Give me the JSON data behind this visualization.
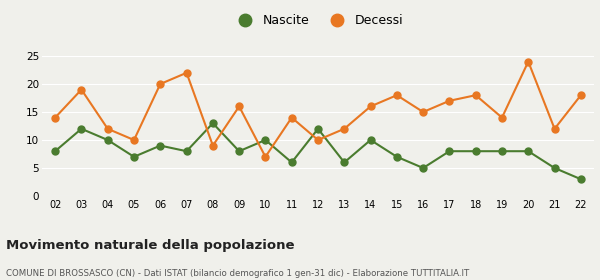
{
  "years": [
    "02",
    "03",
    "04",
    "05",
    "06",
    "07",
    "08",
    "09",
    "10",
    "11",
    "12",
    "13",
    "14",
    "15",
    "16",
    "17",
    "18",
    "19",
    "20",
    "21",
    "22"
  ],
  "nascite": [
    8,
    12,
    10,
    7,
    9,
    8,
    13,
    8,
    10,
    6,
    12,
    6,
    10,
    7,
    5,
    8,
    8,
    8,
    8,
    5,
    3
  ],
  "decessi": [
    14,
    19,
    12,
    10,
    20,
    22,
    9,
    16,
    7,
    14,
    10,
    12,
    16,
    18,
    15,
    17,
    18,
    14,
    24,
    12,
    18
  ],
  "nascite_color": "#4a7c2f",
  "decessi_color": "#e87722",
  "title": "Movimento naturale della popolazione",
  "subtitle": "COMUNE DI BROSSASCO (CN) - Dati ISTAT (bilancio demografico 1 gen-31 dic) - Elaborazione TUTTITALIA.IT",
  "legend_nascite": "Nascite",
  "legend_decessi": "Decessi",
  "ylim": [
    0,
    25
  ],
  "yticks": [
    0,
    5,
    10,
    15,
    20,
    25
  ],
  "background_color": "#f0f0eb",
  "grid_color": "#ffffff",
  "marker_size": 5,
  "line_width": 1.5
}
